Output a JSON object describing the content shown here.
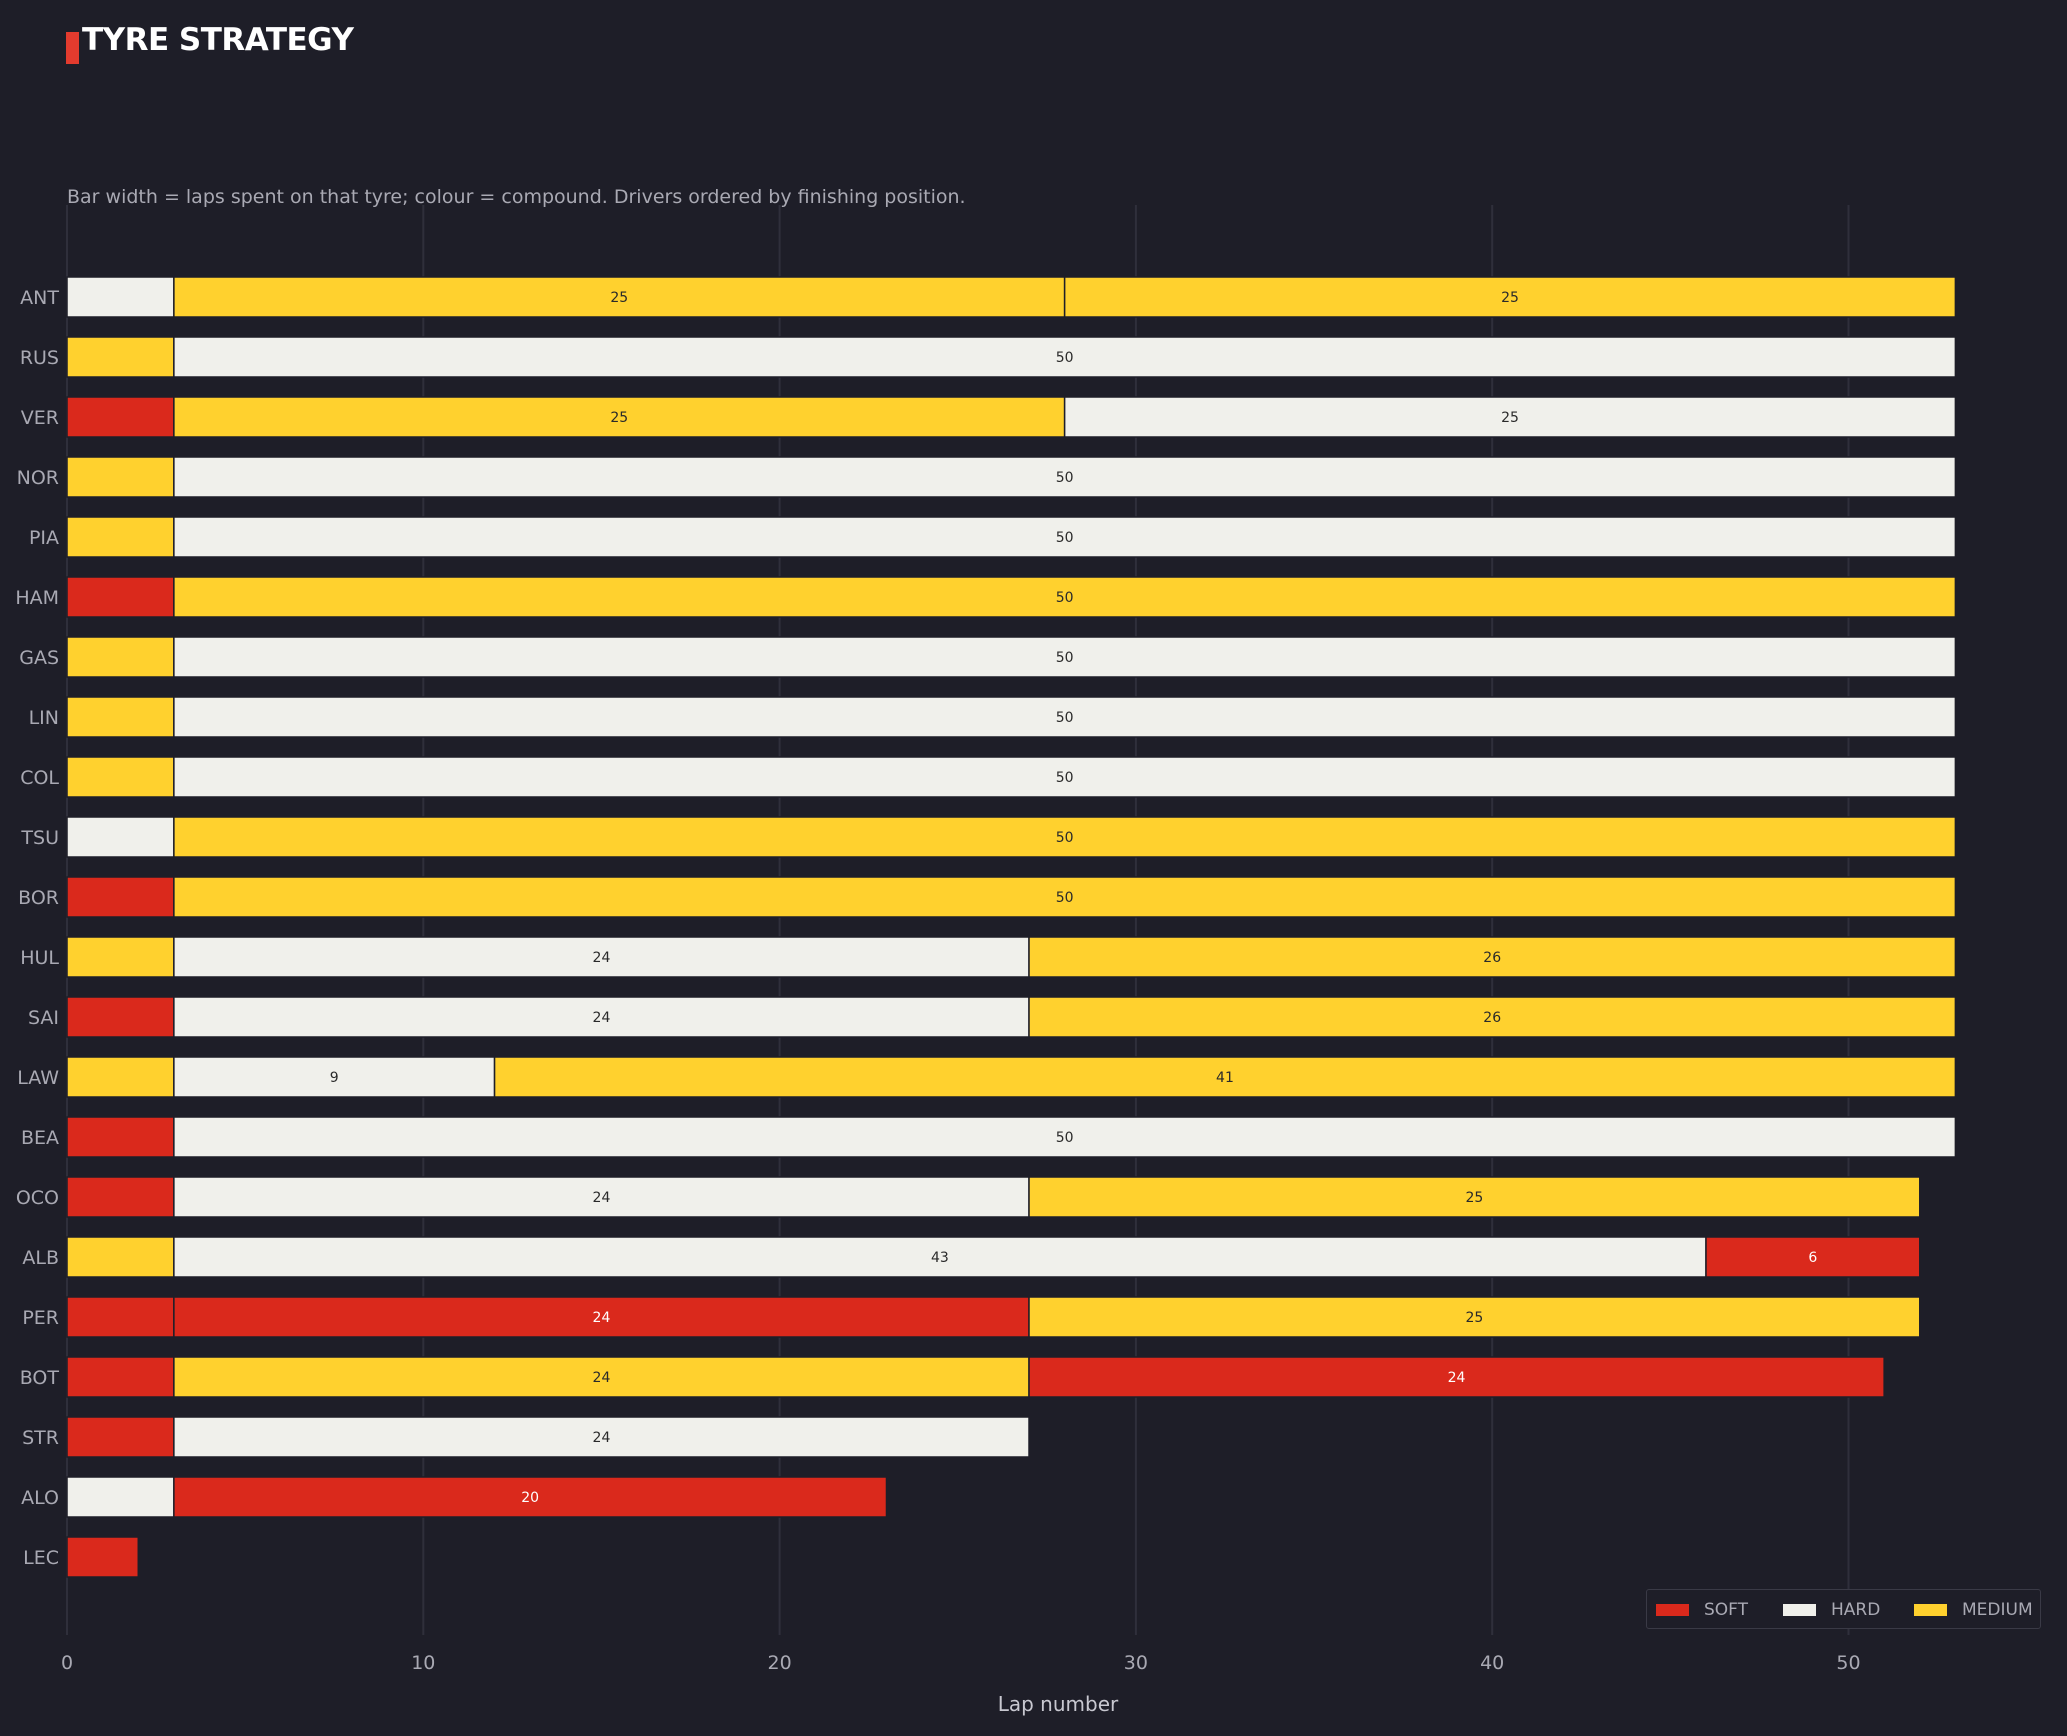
{
  "header": {
    "title": "TYRE STRATEGY",
    "subtitle": "Bar width = laps spent on that tyre; colour = compound. Drivers ordered by finishing position."
  },
  "colors": {
    "SOFT": "#da291c",
    "HARD": "#f0f0eb",
    "MEDIUM": "#ffd12e",
    "background": "#1e1e28",
    "title_accent": "#e33b2e"
  },
  "chart_data": {
    "type": "bar",
    "orientation": "horizontal-stacked",
    "title": "TYRE STRATEGY",
    "subtitle": "Bar width = laps spent on that tyre; colour = compound. Drivers ordered by finishing position.",
    "xlabel": "Lap number",
    "ylabel": "",
    "xlim": [
      0,
      55.5
    ],
    "xticks": [
      0,
      10,
      20,
      30,
      40,
      50
    ],
    "grid": "vertical",
    "legend": {
      "position": "bottom-right",
      "entries": [
        "SOFT",
        "HARD",
        "MEDIUM"
      ]
    },
    "drivers": [
      {
        "name": "ANT",
        "stints": [
          {
            "compound": "HARD",
            "laps": 3
          },
          {
            "compound": "MEDIUM",
            "laps": 25
          },
          {
            "compound": "MEDIUM",
            "laps": 25
          }
        ]
      },
      {
        "name": "RUS",
        "stints": [
          {
            "compound": "MEDIUM",
            "laps": 3
          },
          {
            "compound": "HARD",
            "laps": 50
          }
        ]
      },
      {
        "name": "VER",
        "stints": [
          {
            "compound": "SOFT",
            "laps": 3
          },
          {
            "compound": "MEDIUM",
            "laps": 25
          },
          {
            "compound": "HARD",
            "laps": 25
          }
        ]
      },
      {
        "name": "NOR",
        "stints": [
          {
            "compound": "MEDIUM",
            "laps": 3
          },
          {
            "compound": "HARD",
            "laps": 50
          }
        ]
      },
      {
        "name": "PIA",
        "stints": [
          {
            "compound": "MEDIUM",
            "laps": 3
          },
          {
            "compound": "HARD",
            "laps": 50
          }
        ]
      },
      {
        "name": "HAM",
        "stints": [
          {
            "compound": "SOFT",
            "laps": 3
          },
          {
            "compound": "MEDIUM",
            "laps": 50
          }
        ]
      },
      {
        "name": "GAS",
        "stints": [
          {
            "compound": "MEDIUM",
            "laps": 3
          },
          {
            "compound": "HARD",
            "laps": 50
          }
        ]
      },
      {
        "name": "LIN",
        "stints": [
          {
            "compound": "MEDIUM",
            "laps": 3
          },
          {
            "compound": "HARD",
            "laps": 50
          }
        ]
      },
      {
        "name": "COL",
        "stints": [
          {
            "compound": "MEDIUM",
            "laps": 3
          },
          {
            "compound": "HARD",
            "laps": 50
          }
        ]
      },
      {
        "name": "TSU",
        "stints": [
          {
            "compound": "HARD",
            "laps": 3
          },
          {
            "compound": "MEDIUM",
            "laps": 50
          }
        ]
      },
      {
        "name": "BOR",
        "stints": [
          {
            "compound": "SOFT",
            "laps": 3
          },
          {
            "compound": "MEDIUM",
            "laps": 50
          }
        ]
      },
      {
        "name": "HUL",
        "stints": [
          {
            "compound": "MEDIUM",
            "laps": 3
          },
          {
            "compound": "HARD",
            "laps": 24
          },
          {
            "compound": "MEDIUM",
            "laps": 26
          }
        ]
      },
      {
        "name": "SAI",
        "stints": [
          {
            "compound": "SOFT",
            "laps": 3
          },
          {
            "compound": "HARD",
            "laps": 24
          },
          {
            "compound": "MEDIUM",
            "laps": 26
          }
        ]
      },
      {
        "name": "LAW",
        "stints": [
          {
            "compound": "MEDIUM",
            "laps": 3
          },
          {
            "compound": "HARD",
            "laps": 9
          },
          {
            "compound": "MEDIUM",
            "laps": 41
          }
        ]
      },
      {
        "name": "BEA",
        "stints": [
          {
            "compound": "SOFT",
            "laps": 3
          },
          {
            "compound": "HARD",
            "laps": 50
          }
        ]
      },
      {
        "name": "OCO",
        "stints": [
          {
            "compound": "SOFT",
            "laps": 3
          },
          {
            "compound": "HARD",
            "laps": 24
          },
          {
            "compound": "MEDIUM",
            "laps": 25
          }
        ]
      },
      {
        "name": "ALB",
        "stints": [
          {
            "compound": "MEDIUM",
            "laps": 3
          },
          {
            "compound": "HARD",
            "laps": 43
          },
          {
            "compound": "SOFT",
            "laps": 6
          }
        ]
      },
      {
        "name": "PER",
        "stints": [
          {
            "compound": "SOFT",
            "laps": 3
          },
          {
            "compound": "SOFT",
            "laps": 24
          },
          {
            "compound": "MEDIUM",
            "laps": 25
          }
        ]
      },
      {
        "name": "BOT",
        "stints": [
          {
            "compound": "SOFT",
            "laps": 3
          },
          {
            "compound": "MEDIUM",
            "laps": 24
          },
          {
            "compound": "SOFT",
            "laps": 24
          }
        ]
      },
      {
        "name": "STR",
        "stints": [
          {
            "compound": "SOFT",
            "laps": 3
          },
          {
            "compound": "HARD",
            "laps": 24
          }
        ]
      },
      {
        "name": "ALO",
        "stints": [
          {
            "compound": "HARD",
            "laps": 3
          },
          {
            "compound": "SOFT",
            "laps": 20
          }
        ]
      },
      {
        "name": "LEC",
        "stints": [
          {
            "compound": "SOFT",
            "laps": 2
          }
        ]
      }
    ]
  }
}
